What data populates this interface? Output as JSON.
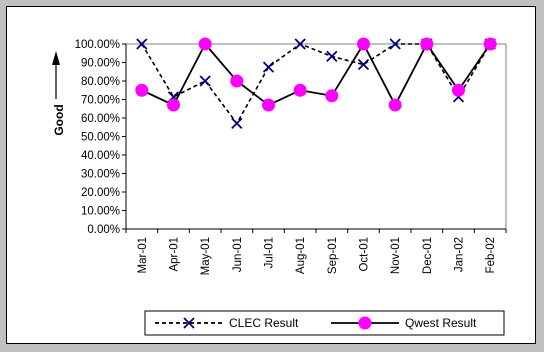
{
  "chart_data": {
    "type": "line",
    "title": "",
    "xlabel": "",
    "ylabel": "Good",
    "ylabel_arrow": "up",
    "ylim": [
      0,
      100
    ],
    "y_tick_step": 10,
    "y_tick_format": "percent_2dp",
    "grid": false,
    "legend_placement": "bottom",
    "categories": [
      "Mar-01",
      "Apr-01",
      "May-01",
      "Jun-01",
      "Jul-01",
      "Aug-01",
      "Sep-01",
      "Oct-01",
      "Nov-01",
      "Dec-01",
      "Jan-02",
      "Feb-02"
    ],
    "series": [
      {
        "name": "CLEC Result",
        "style": "dashed",
        "marker": "x",
        "color": "#000080",
        "line_color": "#000000",
        "values": [
          100,
          71.4,
          80,
          57.1,
          87.5,
          100,
          93.3,
          88.9,
          100,
          100,
          71.4,
          100
        ]
      },
      {
        "name": "Qwest Result",
        "style": "solid",
        "marker": "circle",
        "color": "#ff00ff",
        "line_color": "#000000",
        "values": [
          75,
          67,
          100,
          80,
          67,
          75,
          72,
          100,
          67,
          100,
          75,
          100
        ]
      }
    ]
  }
}
